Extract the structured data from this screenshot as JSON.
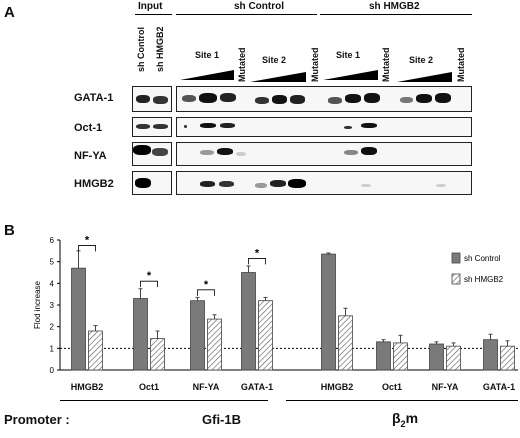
{
  "panelA": {
    "letter": "A",
    "headers": {
      "input": "Input",
      "sh_control": "sh Control",
      "sh_hmgb2": "sh HMGB2"
    },
    "input_lanes": [
      "sh Control",
      "sh HMGB2"
    ],
    "sub_labels": {
      "site1": "Site 1",
      "site2": "Site 2",
      "mutated": "Mutated"
    },
    "rows": [
      "GATA-1",
      "Oct-1",
      "NF-YA",
      "HMGB2"
    ]
  },
  "panelB": {
    "letter": "B",
    "significance_marker": "*",
    "promoter_label": "Promoter :",
    "group_labels": [
      "Gfi-1B",
      "β2m"
    ],
    "chart_data": {
      "type": "bar",
      "categories": [
        "HMGB2",
        "Oct1",
        "NF-YA",
        "GATA-1",
        "HMGB2",
        "Oct1",
        "NF-YA",
        "GATA-1"
      ],
      "series": [
        {
          "name": "sh Control",
          "values": [
            4.7,
            3.3,
            3.2,
            4.5,
            5.35,
            1.3,
            1.2,
            1.4
          ],
          "errors": [
            0.8,
            0.45,
            0.15,
            0.3,
            0.05,
            0.1,
            0.1,
            0.25
          ],
          "color": "#7a7a7a"
        },
        {
          "name": "sh HMGB2",
          "values": [
            1.8,
            1.45,
            2.35,
            3.2,
            2.5,
            1.25,
            1.1,
            1.1
          ],
          "errors": [
            0.25,
            0.35,
            0.2,
            0.15,
            0.35,
            0.35,
            0.15,
            0.25
          ],
          "color": "#ffffff"
        }
      ],
      "ylabel": "Flod increase",
      "ylim": [
        0,
        6
      ],
      "yticks": [
        0,
        1,
        2,
        3,
        4,
        5,
        6
      ],
      "reference_line": 1,
      "legend_position": "right",
      "significant_categories": [
        0,
        1,
        2,
        3
      ]
    }
  }
}
